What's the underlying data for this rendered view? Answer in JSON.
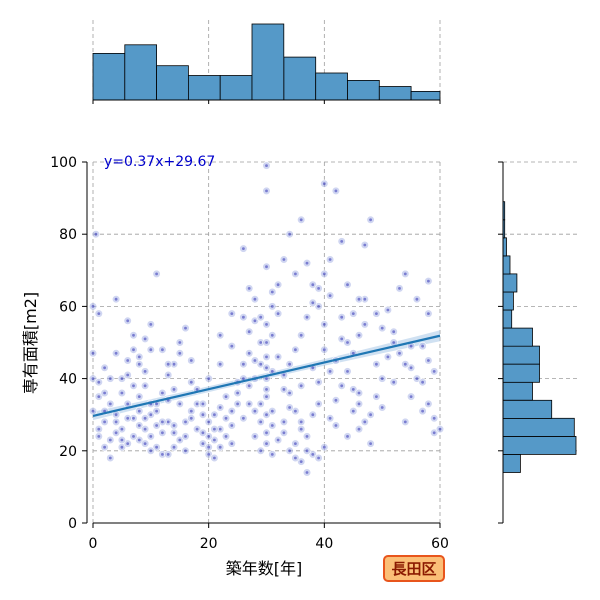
{
  "chart_data": {
    "type": "scatter",
    "title": "",
    "xlabel": "築年数[年]",
    "ylabel": "専有面積[m2]",
    "xlim": [
      0,
      60
    ],
    "ylim": [
      0,
      100
    ],
    "xticks": [
      "0",
      "20",
      "40",
      "60"
    ],
    "yticks": [
      "0",
      "20",
      "40",
      "60",
      "80",
      "100"
    ],
    "grid": true,
    "regression": {
      "label": "y=0.37x+29.67",
      "slope": 0.37,
      "intercept": 29.67,
      "confidence_band": "shaded"
    },
    "badge": "長田区",
    "marginal_x_hist": {
      "bin_edges": [
        0,
        5.5,
        11,
        16.5,
        22,
        27.5,
        33,
        38.5,
        44,
        49.5,
        55,
        60
      ],
      "counts": [
        38,
        45,
        28,
        20,
        20,
        62,
        35,
        22,
        16,
        11,
        7
      ]
    },
    "marginal_y_hist": {
      "bin_edges": [
        14,
        19,
        24,
        29,
        34,
        39,
        44,
        49,
        54,
        59,
        64,
        69,
        74,
        79,
        84,
        89,
        94,
        99,
        100
      ],
      "counts": [
        10,
        42,
        41,
        28,
        17,
        21,
        21,
        17,
        5,
        6,
        8,
        4,
        2,
        1,
        1,
        0,
        0,
        0
      ]
    },
    "series": [
      {
        "points": [
          [
            0.5,
            80
          ],
          [
            0,
            60
          ],
          [
            0,
            47
          ],
          [
            0,
            40
          ],
          [
            1,
            39
          ],
          [
            1,
            35
          ],
          [
            2,
            31
          ],
          [
            2,
            28
          ],
          [
            1,
            24
          ],
          [
            3,
            23
          ],
          [
            2,
            21
          ],
          [
            4,
            30
          ],
          [
            5,
            26
          ],
          [
            4,
            25
          ],
          [
            6,
            33
          ],
          [
            5,
            36
          ],
          [
            5,
            40
          ],
          [
            6,
            45
          ],
          [
            7,
            38
          ],
          [
            7,
            29
          ],
          [
            8,
            27
          ],
          [
            8,
            23
          ],
          [
            9,
            22
          ],
          [
            10,
            24
          ],
          [
            11,
            21
          ],
          [
            12,
            19
          ],
          [
            13,
            19
          ],
          [
            14,
            21
          ],
          [
            10,
            30
          ],
          [
            11,
            33
          ],
          [
            12,
            36
          ],
          [
            13,
            28
          ],
          [
            14,
            27
          ],
          [
            15,
            23
          ],
          [
            16,
            20
          ],
          [
            9,
            42
          ],
          [
            8,
            46
          ],
          [
            7,
            52
          ],
          [
            10,
            55
          ],
          [
            11,
            69
          ],
          [
            12,
            48
          ],
          [
            14,
            44
          ],
          [
            15,
            50
          ],
          [
            17,
            45
          ],
          [
            18,
            33
          ],
          [
            19,
            30
          ],
          [
            20,
            28
          ],
          [
            21,
            23
          ],
          [
            20,
            19
          ],
          [
            22,
            26
          ],
          [
            23,
            29
          ],
          [
            24,
            31
          ],
          [
            25,
            36
          ],
          [
            26,
            40
          ],
          [
            27,
            53
          ],
          [
            26,
            76
          ],
          [
            27,
            65
          ],
          [
            28,
            56
          ],
          [
            29,
            50
          ],
          [
            30,
            40
          ],
          [
            30,
            35
          ],
          [
            30,
            30
          ],
          [
            30,
            25
          ],
          [
            30,
            22
          ],
          [
            30,
            46
          ],
          [
            30,
            55
          ],
          [
            31,
            60
          ],
          [
            31,
            64
          ],
          [
            30,
            92
          ],
          [
            30,
            99
          ],
          [
            32,
            58
          ],
          [
            33,
            41
          ],
          [
            34,
            36
          ],
          [
            35,
            31
          ],
          [
            36,
            28
          ],
          [
            37,
            24
          ],
          [
            38,
            19
          ],
          [
            36,
            17
          ],
          [
            37,
            14
          ],
          [
            35,
            22
          ],
          [
            39,
            18
          ],
          [
            40,
            21
          ],
          [
            41,
            29
          ],
          [
            42,
            34
          ],
          [
            43,
            38
          ],
          [
            44,
            42
          ],
          [
            45,
            47
          ],
          [
            46,
            52
          ],
          [
            47,
            62
          ],
          [
            40,
            94
          ],
          [
            42,
            92
          ],
          [
            38,
            66
          ],
          [
            39,
            60
          ],
          [
            40,
            55
          ],
          [
            37,
            72
          ],
          [
            36,
            84
          ],
          [
            41,
            63
          ],
          [
            43,
            57
          ],
          [
            45,
            37
          ],
          [
            46,
            33
          ],
          [
            47,
            28
          ],
          [
            48,
            22
          ],
          [
            49,
            35
          ],
          [
            50,
            40
          ],
          [
            51,
            46
          ],
          [
            52,
            53
          ],
          [
            53,
            65
          ],
          [
            54,
            69
          ],
          [
            55,
            43
          ],
          [
            56,
            40
          ],
          [
            57,
            31
          ],
          [
            58,
            58
          ],
          [
            59,
            25
          ],
          [
            59,
            42
          ],
          [
            48,
            84
          ],
          [
            47,
            77
          ],
          [
            35,
            69
          ],
          [
            34,
            80
          ],
          [
            33,
            73
          ],
          [
            32,
            66
          ],
          [
            28,
            62
          ],
          [
            29,
            44
          ],
          [
            27,
            38
          ],
          [
            25,
            33
          ],
          [
            24,
            27
          ],
          [
            23,
            24
          ],
          [
            22,
            21
          ],
          [
            21,
            18
          ],
          [
            19,
            22
          ],
          [
            18,
            26
          ],
          [
            17,
            39
          ],
          [
            16,
            54
          ],
          [
            15,
            47
          ],
          [
            13,
            44
          ],
          [
            12,
            25
          ],
          [
            10,
            20
          ],
          [
            9,
            26
          ],
          [
            8,
            35
          ],
          [
            6,
            29
          ],
          [
            5,
            21
          ],
          [
            3,
            18
          ],
          [
            2,
            43
          ],
          [
            1,
            58
          ],
          [
            4,
            62
          ],
          [
            6,
            56
          ],
          [
            7,
            48
          ],
          [
            9,
            38
          ],
          [
            11,
            31
          ],
          [
            13,
            34
          ],
          [
            16,
            28
          ],
          [
            19,
            33
          ],
          [
            22,
            44
          ],
          [
            24,
            49
          ],
          [
            26,
            57
          ],
          [
            28,
            45
          ],
          [
            31,
            42
          ],
          [
            33,
            37
          ],
          [
            34,
            32
          ],
          [
            36,
            38
          ],
          [
            38,
            43
          ],
          [
            40,
            48
          ],
          [
            42,
            27
          ],
          [
            44,
            24
          ],
          [
            45,
            31
          ],
          [
            46,
            36
          ],
          [
            50,
            32
          ],
          [
            52,
            39
          ],
          [
            54,
            28
          ],
          [
            55,
            35
          ],
          [
            57,
            49
          ],
          [
            58,
            67
          ],
          [
            30,
            71
          ],
          [
            29,
            33
          ],
          [
            31,
            27
          ],
          [
            32,
            23
          ],
          [
            29,
            28
          ],
          [
            31,
            31
          ],
          [
            30,
            37
          ],
          [
            30,
            43
          ],
          [
            30,
            50
          ],
          [
            29,
            57
          ],
          [
            31,
            52
          ],
          [
            28,
            40
          ],
          [
            32,
            46
          ],
          [
            33,
            25
          ],
          [
            28,
            31
          ],
          [
            34,
            20
          ],
          [
            35,
            18
          ],
          [
            37,
            20
          ],
          [
            36,
            26
          ],
          [
            38,
            30
          ],
          [
            39,
            33
          ],
          [
            39,
            39
          ],
          [
            41,
            42
          ],
          [
            42,
            45
          ],
          [
            43,
            51
          ],
          [
            44,
            50
          ],
          [
            45,
            58
          ],
          [
            47,
            55
          ],
          [
            49,
            44
          ],
          [
            51,
            59
          ],
          [
            53,
            47
          ],
          [
            56,
            62
          ],
          [
            58,
            45
          ],
          [
            48,
            30
          ],
          [
            46,
            26
          ],
          [
            20,
            24
          ],
          [
            21,
            30
          ],
          [
            23,
            35
          ],
          [
            25,
            39
          ],
          [
            26,
            44
          ],
          [
            27,
            47
          ],
          [
            24,
            58
          ],
          [
            22,
            52
          ],
          [
            20,
            40
          ],
          [
            18,
            37
          ],
          [
            17,
            31
          ],
          [
            16,
            24
          ],
          [
            14,
            25
          ],
          [
            12,
            28
          ],
          [
            11,
            27
          ],
          [
            10,
            33
          ],
          [
            9,
            29
          ],
          [
            8,
            31
          ],
          [
            7,
            24
          ],
          [
            6,
            22
          ],
          [
            5,
            23
          ],
          [
            4,
            28
          ],
          [
            3,
            33
          ],
          [
            2,
            36
          ],
          [
            1,
            26
          ],
          [
            0,
            31
          ],
          [
            3,
            40
          ],
          [
            4,
            47
          ],
          [
            6,
            41
          ],
          [
            8,
            44
          ],
          [
            9,
            51
          ],
          [
            10,
            48
          ],
          [
            13,
            41
          ],
          [
            14,
            37
          ],
          [
            15,
            33
          ],
          [
            17,
            29
          ],
          [
            19,
            25
          ],
          [
            20,
            21
          ],
          [
            21,
            26
          ],
          [
            22,
            32
          ],
          [
            24,
            22
          ],
          [
            26,
            29
          ],
          [
            27,
            33
          ],
          [
            28,
            24
          ],
          [
            29,
            20
          ],
          [
            31,
            19
          ],
          [
            33,
            28
          ],
          [
            34,
            44
          ],
          [
            35,
            48
          ],
          [
            36,
            52
          ],
          [
            37,
            57
          ],
          [
            38,
            61
          ],
          [
            39,
            65
          ],
          [
            40,
            69
          ],
          [
            41,
            73
          ],
          [
            43,
            78
          ],
          [
            44,
            66
          ],
          [
            46,
            62
          ],
          [
            49,
            58
          ],
          [
            50,
            54
          ],
          [
            52,
            50
          ],
          [
            54,
            44
          ],
          [
            55,
            49
          ],
          [
            57,
            39
          ],
          [
            58,
            33
          ],
          [
            59,
            29
          ],
          [
            60,
            26
          ]
        ]
      }
    ]
  },
  "colors": {
    "scatter_light": "#aab4e6",
    "scatter_dark": "#1010a8",
    "regression": "#1f77b4",
    "ci_band": "#aac8e8",
    "hist_fill": "#5599c8",
    "equation_text": "#0000cc",
    "badge_fill": "#fbbf77",
    "badge_border": "#e8551c",
    "badge_text": "#8b1a00"
  }
}
